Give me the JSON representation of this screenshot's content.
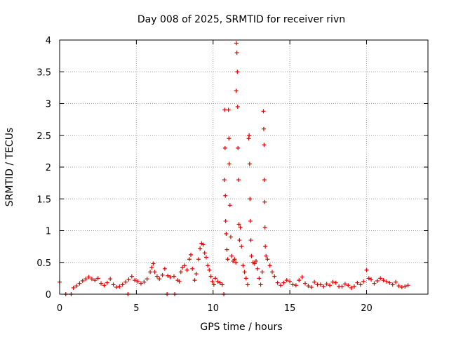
{
  "chart_data": {
    "type": "scatter",
    "title": "Day 008 of 2025, SRMTID for receiver rivn",
    "xlabel": "GPS time / hours",
    "ylabel": "SRMTID / TECUs",
    "xlim": [
      0,
      24
    ],
    "ylim": [
      0,
      4
    ],
    "xticks": [
      0,
      5,
      10,
      15,
      20
    ],
    "xtick_labels": [
      "0",
      "5",
      "10",
      "15",
      "20"
    ],
    "yticks": [
      0,
      0.5,
      1,
      1.5,
      2,
      2.5,
      3,
      3.5,
      4
    ],
    "ytick_labels": [
      "0",
      "0.5",
      "1",
      "1.5",
      "2",
      "2.5",
      "3",
      "3.5",
      "4"
    ],
    "grid": true,
    "marker": "+",
    "series": [
      {
        "name": "SRMTID",
        "color": "#e00000",
        "points": [
          [
            0.0,
            0.19
          ],
          [
            0.4,
            0.0
          ],
          [
            0.75,
            0.0
          ],
          [
            0.9,
            0.1
          ],
          [
            1.1,
            0.13
          ],
          [
            1.3,
            0.17
          ],
          [
            1.5,
            0.21
          ],
          [
            1.7,
            0.24
          ],
          [
            1.9,
            0.27
          ],
          [
            2.1,
            0.24
          ],
          [
            2.3,
            0.22
          ],
          [
            2.5,
            0.25
          ],
          [
            2.7,
            0.17
          ],
          [
            2.9,
            0.14
          ],
          [
            3.1,
            0.18
          ],
          [
            3.3,
            0.24
          ],
          [
            3.5,
            0.15
          ],
          [
            3.7,
            0.11
          ],
          [
            3.9,
            0.12
          ],
          [
            4.1,
            0.15
          ],
          [
            4.3,
            0.19
          ],
          [
            4.45,
            0.0
          ],
          [
            4.5,
            0.23
          ],
          [
            4.7,
            0.28
          ],
          [
            4.9,
            0.22
          ],
          [
            5.1,
            0.2
          ],
          [
            5.3,
            0.17
          ],
          [
            5.5,
            0.19
          ],
          [
            5.7,
            0.24
          ],
          [
            5.9,
            0.35
          ],
          [
            6.0,
            0.42
          ],
          [
            6.1,
            0.48
          ],
          [
            6.2,
            0.35
          ],
          [
            6.35,
            0.28
          ],
          [
            6.5,
            0.24
          ],
          [
            6.7,
            0.3
          ],
          [
            6.85,
            0.4
          ],
          [
            7.0,
            0.0
          ],
          [
            7.05,
            0.29
          ],
          [
            7.2,
            0.27
          ],
          [
            7.45,
            0.28
          ],
          [
            7.5,
            0.0
          ],
          [
            7.7,
            0.22
          ],
          [
            7.8,
            0.2
          ],
          [
            7.9,
            0.35
          ],
          [
            8.0,
            0.42
          ],
          [
            8.15,
            0.45
          ],
          [
            8.3,
            0.38
          ],
          [
            8.45,
            0.55
          ],
          [
            8.55,
            0.62
          ],
          [
            8.65,
            0.4
          ],
          [
            8.8,
            0.22
          ],
          [
            8.9,
            0.32
          ],
          [
            9.05,
            0.55
          ],
          [
            9.15,
            0.72
          ],
          [
            9.25,
            0.8
          ],
          [
            9.35,
            0.78
          ],
          [
            9.45,
            0.65
          ],
          [
            9.55,
            0.58
          ],
          [
            9.65,
            0.45
          ],
          [
            9.75,
            0.38
          ],
          [
            9.85,
            0.28
          ],
          [
            9.95,
            0.2
          ],
          [
            10.05,
            0.15
          ],
          [
            10.15,
            0.25
          ],
          [
            10.3,
            0.2
          ],
          [
            10.45,
            0.18
          ],
          [
            10.6,
            0.15
          ],
          [
            10.7,
            0.0
          ],
          [
            10.73,
            1.8
          ],
          [
            10.75,
            2.9
          ],
          [
            10.78,
            2.3
          ],
          [
            10.8,
            1.55
          ],
          [
            10.82,
            1.15
          ],
          [
            10.85,
            0.95
          ],
          [
            10.9,
            0.7
          ],
          [
            10.95,
            0.55
          ],
          [
            11.0,
            2.9
          ],
          [
            11.03,
            2.45
          ],
          [
            11.05,
            2.05
          ],
          [
            11.1,
            1.4
          ],
          [
            11.15,
            0.9
          ],
          [
            11.2,
            0.6
          ],
          [
            11.3,
            0.52
          ],
          [
            11.4,
            0.55
          ],
          [
            11.48,
            0.5
          ],
          [
            11.5,
            3.2
          ],
          [
            11.52,
            3.95
          ],
          [
            11.55,
            3.8
          ],
          [
            11.58,
            3.5
          ],
          [
            11.6,
            2.95
          ],
          [
            11.62,
            2.3
          ],
          [
            11.65,
            1.8
          ],
          [
            11.68,
            1.1
          ],
          [
            11.72,
            0.85
          ],
          [
            11.78,
            1.05
          ],
          [
            11.85,
            0.75
          ],
          [
            11.95,
            0.45
          ],
          [
            12.05,
            0.35
          ],
          [
            12.15,
            0.25
          ],
          [
            12.25,
            0.15
          ],
          [
            12.32,
            2.45
          ],
          [
            12.35,
            2.5
          ],
          [
            12.38,
            2.05
          ],
          [
            12.4,
            1.5
          ],
          [
            12.43,
            1.15
          ],
          [
            12.46,
            0.85
          ],
          [
            12.5,
            0.6
          ],
          [
            12.6,
            0.5
          ],
          [
            12.7,
            0.48
          ],
          [
            12.8,
            0.52
          ],
          [
            12.9,
            0.4
          ],
          [
            13.0,
            0.25
          ],
          [
            13.1,
            0.15
          ],
          [
            13.2,
            0.35
          ],
          [
            13.28,
            2.88
          ],
          [
            13.3,
            2.6
          ],
          [
            13.32,
            2.35
          ],
          [
            13.34,
            1.8
          ],
          [
            13.36,
            1.45
          ],
          [
            13.38,
            1.05
          ],
          [
            13.4,
            0.75
          ],
          [
            13.45,
            0.6
          ],
          [
            13.55,
            0.55
          ],
          [
            13.7,
            0.45
          ],
          [
            13.85,
            0.35
          ],
          [
            14.0,
            0.28
          ],
          [
            14.2,
            0.18
          ],
          [
            14.4,
            0.14
          ],
          [
            14.6,
            0.18
          ],
          [
            14.8,
            0.22
          ],
          [
            15.0,
            0.2
          ],
          [
            15.2,
            0.15
          ],
          [
            15.4,
            0.14
          ],
          [
            15.6,
            0.22
          ],
          [
            15.8,
            0.27
          ],
          [
            16.0,
            0.17
          ],
          [
            16.2,
            0.13
          ],
          [
            16.4,
            0.11
          ],
          [
            16.6,
            0.19
          ],
          [
            16.8,
            0.15
          ],
          [
            17.0,
            0.15
          ],
          [
            17.2,
            0.12
          ],
          [
            17.4,
            0.16
          ],
          [
            17.6,
            0.14
          ],
          [
            17.8,
            0.19
          ],
          [
            18.0,
            0.18
          ],
          [
            18.2,
            0.12
          ],
          [
            18.4,
            0.12
          ],
          [
            18.6,
            0.16
          ],
          [
            18.8,
            0.14
          ],
          [
            19.0,
            0.1
          ],
          [
            19.2,
            0.12
          ],
          [
            19.4,
            0.18
          ],
          [
            19.6,
            0.15
          ],
          [
            19.8,
            0.2
          ],
          [
            20.0,
            0.38
          ],
          [
            20.15,
            0.25
          ],
          [
            20.3,
            0.23
          ],
          [
            20.5,
            0.17
          ],
          [
            20.7,
            0.21
          ],
          [
            20.9,
            0.25
          ],
          [
            21.1,
            0.22
          ],
          [
            21.3,
            0.2
          ],
          [
            21.5,
            0.18
          ],
          [
            21.7,
            0.15
          ],
          [
            21.9,
            0.19
          ],
          [
            22.1,
            0.13
          ],
          [
            22.3,
            0.11
          ],
          [
            22.5,
            0.12
          ],
          [
            22.7,
            0.14
          ]
        ]
      }
    ]
  }
}
